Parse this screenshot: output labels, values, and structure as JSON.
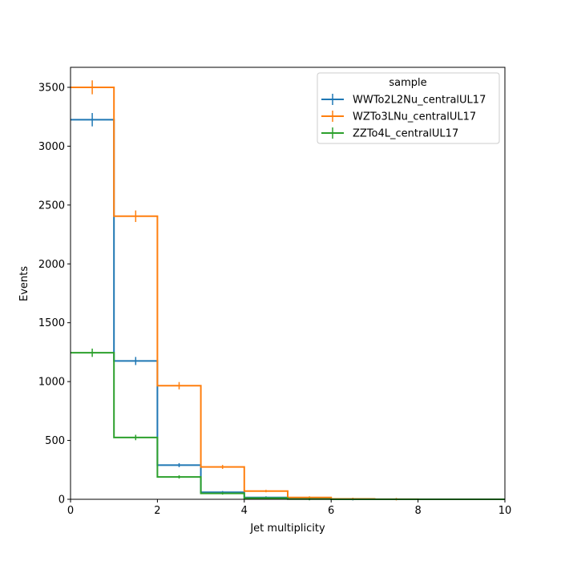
{
  "chart_data": {
    "type": "histogram-step",
    "xlabel": "Jet multiplicity",
    "ylabel": "Events",
    "xlim": [
      0,
      10
    ],
    "ylim": [
      0,
      3670
    ],
    "xticks": [
      "0",
      "2",
      "4",
      "6",
      "8",
      "10"
    ],
    "xtick_values": [
      0,
      2,
      4,
      6,
      8,
      10
    ],
    "yticks": [
      "0",
      "500",
      "1000",
      "1500",
      "2000",
      "2500",
      "3000",
      "3500"
    ],
    "ytick_values": [
      0,
      500,
      1000,
      1500,
      2000,
      2500,
      3000,
      3500
    ],
    "bin_edges": [
      0,
      1,
      2,
      3,
      4,
      5,
      6,
      7,
      8,
      9,
      10
    ],
    "grid": false,
    "legend": {
      "title": "sample",
      "placement": "top-right"
    },
    "series": [
      {
        "name": "WWTo2L2Nu_centralUL17",
        "color": "#1f77b4",
        "values": [
          3225,
          1175,
          290,
          60,
          15,
          3,
          1,
          0,
          0,
          0
        ]
      },
      {
        "name": "WZTo3LNu_centralUL17",
        "color": "#ff7f0e",
        "values": [
          3500,
          2405,
          965,
          275,
          70,
          15,
          3,
          1,
          0,
          0
        ]
      },
      {
        "name": "ZZTo4L_centralUL17",
        "color": "#2ca02c",
        "values": [
          1245,
          525,
          190,
          50,
          10,
          2,
          0,
          0,
          0,
          0
        ]
      }
    ]
  }
}
